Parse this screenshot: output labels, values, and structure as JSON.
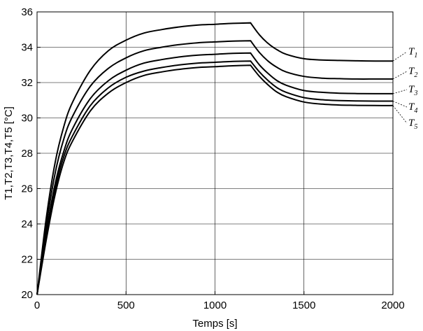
{
  "chart_data": {
    "type": "line",
    "title": "",
    "xlabel": "Temps [s]",
    "ylabel": "T1,T2,T3,T4,T5 [°C]",
    "xlim": [
      0,
      2000
    ],
    "ylim": [
      20,
      36
    ],
    "xticks": [
      0,
      500,
      1000,
      1500,
      2000
    ],
    "yticks": [
      20,
      22,
      24,
      26,
      28,
      30,
      32,
      34,
      36
    ],
    "grid": true,
    "x": [
      0,
      50,
      100,
      150,
      200,
      300,
      400,
      500,
      600,
      700,
      800,
      900,
      1000,
      1100,
      1200,
      1250,
      1300,
      1350,
      1400,
      1500,
      1600,
      1700,
      1800,
      1900,
      2000
    ],
    "series": [
      {
        "name": "T",
        "sub": "1",
        "color": "#000000",
        "values": [
          20.0,
          24.2,
          27.4,
          29.5,
          30.9,
          32.7,
          33.8,
          34.4,
          34.8,
          35.0,
          35.15,
          35.25,
          35.3,
          35.35,
          35.38,
          34.7,
          34.2,
          33.85,
          33.6,
          33.35,
          33.28,
          33.25,
          33.23,
          33.22,
          33.22
        ]
      },
      {
        "name": "T",
        "sub": "2",
        "color": "#000000",
        "values": [
          20.0,
          23.8,
          26.8,
          28.8,
          30.1,
          31.8,
          32.8,
          33.4,
          33.8,
          34.0,
          34.15,
          34.25,
          34.3,
          34.35,
          34.37,
          33.7,
          33.2,
          32.85,
          32.6,
          32.35,
          32.25,
          32.22,
          32.2,
          32.2,
          32.2
        ]
      },
      {
        "name": "T",
        "sub": "3",
        "color": "#000000",
        "values": [
          20.0,
          23.4,
          26.2,
          28.1,
          29.4,
          31.1,
          32.1,
          32.7,
          33.1,
          33.3,
          33.45,
          33.55,
          33.6,
          33.65,
          33.67,
          33.0,
          32.5,
          32.1,
          31.85,
          31.55,
          31.45,
          31.4,
          31.38,
          31.37,
          31.37
        ]
      },
      {
        "name": "T",
        "sub": "4",
        "color": "#000000",
        "values": [
          20.0,
          23.2,
          25.9,
          27.8,
          29.0,
          30.7,
          31.7,
          32.3,
          32.65,
          32.85,
          33.0,
          33.1,
          33.15,
          33.2,
          33.22,
          32.6,
          32.1,
          31.7,
          31.45,
          31.15,
          31.03,
          30.98,
          30.96,
          30.95,
          30.95
        ]
      },
      {
        "name": "T",
        "sub": "5",
        "color": "#000000",
        "values": [
          20.0,
          23.0,
          25.6,
          27.5,
          28.7,
          30.4,
          31.4,
          32.0,
          32.4,
          32.6,
          32.75,
          32.85,
          32.9,
          32.95,
          32.98,
          32.35,
          31.85,
          31.45,
          31.2,
          30.9,
          30.78,
          30.73,
          30.71,
          30.7,
          30.7
        ]
      }
    ]
  }
}
